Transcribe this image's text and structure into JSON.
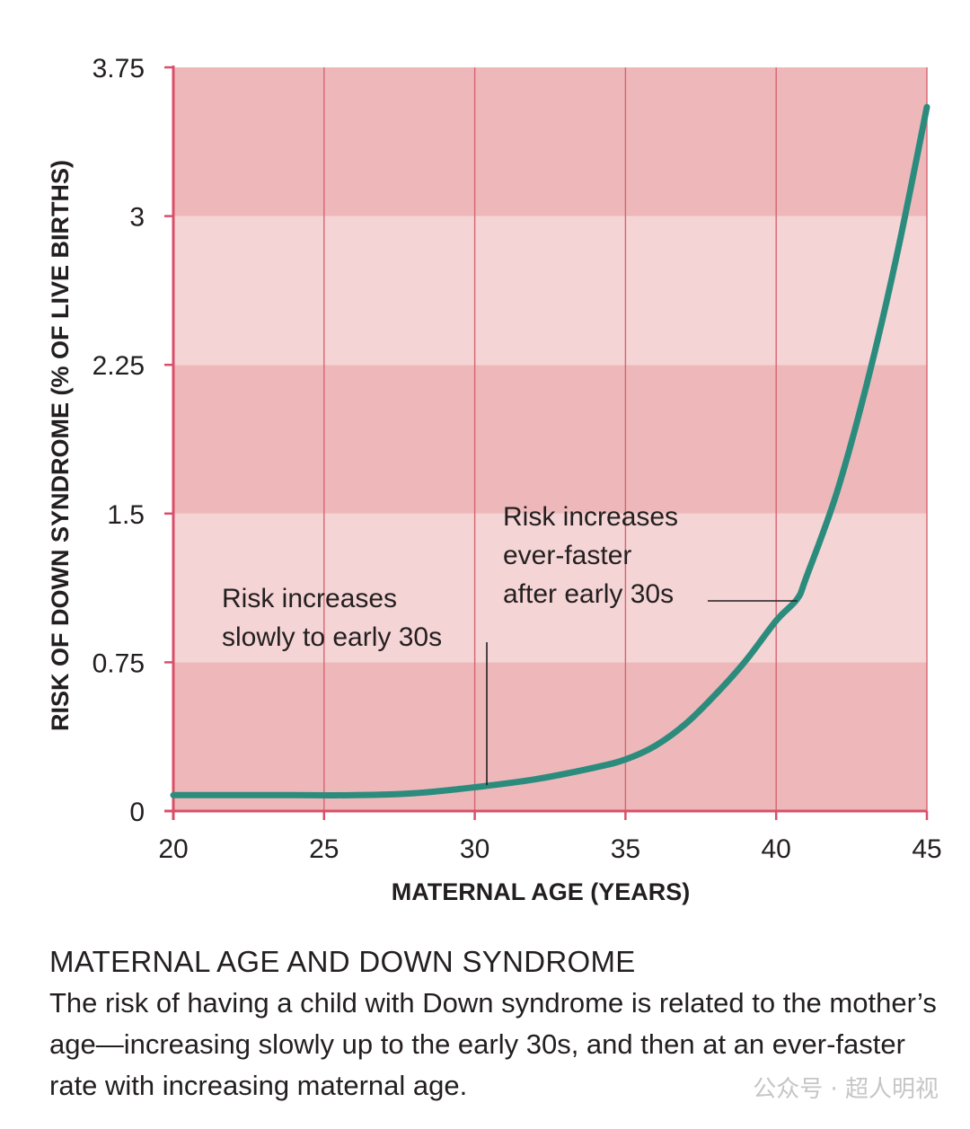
{
  "chart_data": {
    "type": "line",
    "title": "",
    "xlabel": "MATERNAL AGE (YEARS)",
    "ylabel": "RISK OF DOWN SYNDROME (% OF LIVE BIRTHS)",
    "xlim": [
      20,
      45
    ],
    "ylim": [
      0,
      3.75
    ],
    "x_ticks": [
      20,
      25,
      30,
      35,
      40,
      45
    ],
    "x_tick_labels": [
      "20",
      "25",
      "30",
      "35",
      "40",
      "45"
    ],
    "y_ticks": [
      0,
      0.75,
      1.5,
      2.25,
      3,
      3.75
    ],
    "y_tick_labels": [
      "0",
      "0.75",
      "1.5",
      "2.25",
      "3",
      "3.75"
    ],
    "grid": true,
    "series": [
      {
        "name": "",
        "color": "#2b8c7e",
        "x": [
          20,
          22,
          24,
          26,
          28,
          30,
          32,
          34,
          35,
          36,
          37,
          38,
          39,
          40,
          40.7,
          41,
          42,
          43,
          44,
          45
        ],
        "y": [
          0.08,
          0.08,
          0.08,
          0.08,
          0.09,
          0.12,
          0.16,
          0.22,
          0.26,
          0.33,
          0.44,
          0.59,
          0.76,
          0.96,
          1.07,
          1.18,
          1.6,
          2.15,
          2.8,
          3.55
        ]
      }
    ],
    "annotations": [
      {
        "lines": [
          "Risk increases",
          "slowly to early 30s"
        ],
        "points_to": [
          30.4,
          0.13
        ]
      },
      {
        "lines": [
          "Risk increases",
          "ever-faster",
          "after early 30s"
        ],
        "points_to": [
          40.7,
          1.07
        ]
      }
    ],
    "colors": {
      "band_dark": "#eeb8ba",
      "band_light": "#f5d4d5",
      "grid": "#d66470",
      "axis": "#d94f6a",
      "line": "#2b8c7e"
    }
  },
  "caption": {
    "heading": "MATERNAL AGE AND DOWN SYNDROME",
    "body": "The risk of having a child with Down syndrome is related to the mother’s age—increasing slowly up to the early 30s, and then at an ever-faster rate with increasing maternal age."
  },
  "watermark": "公众号 · 超人明视"
}
